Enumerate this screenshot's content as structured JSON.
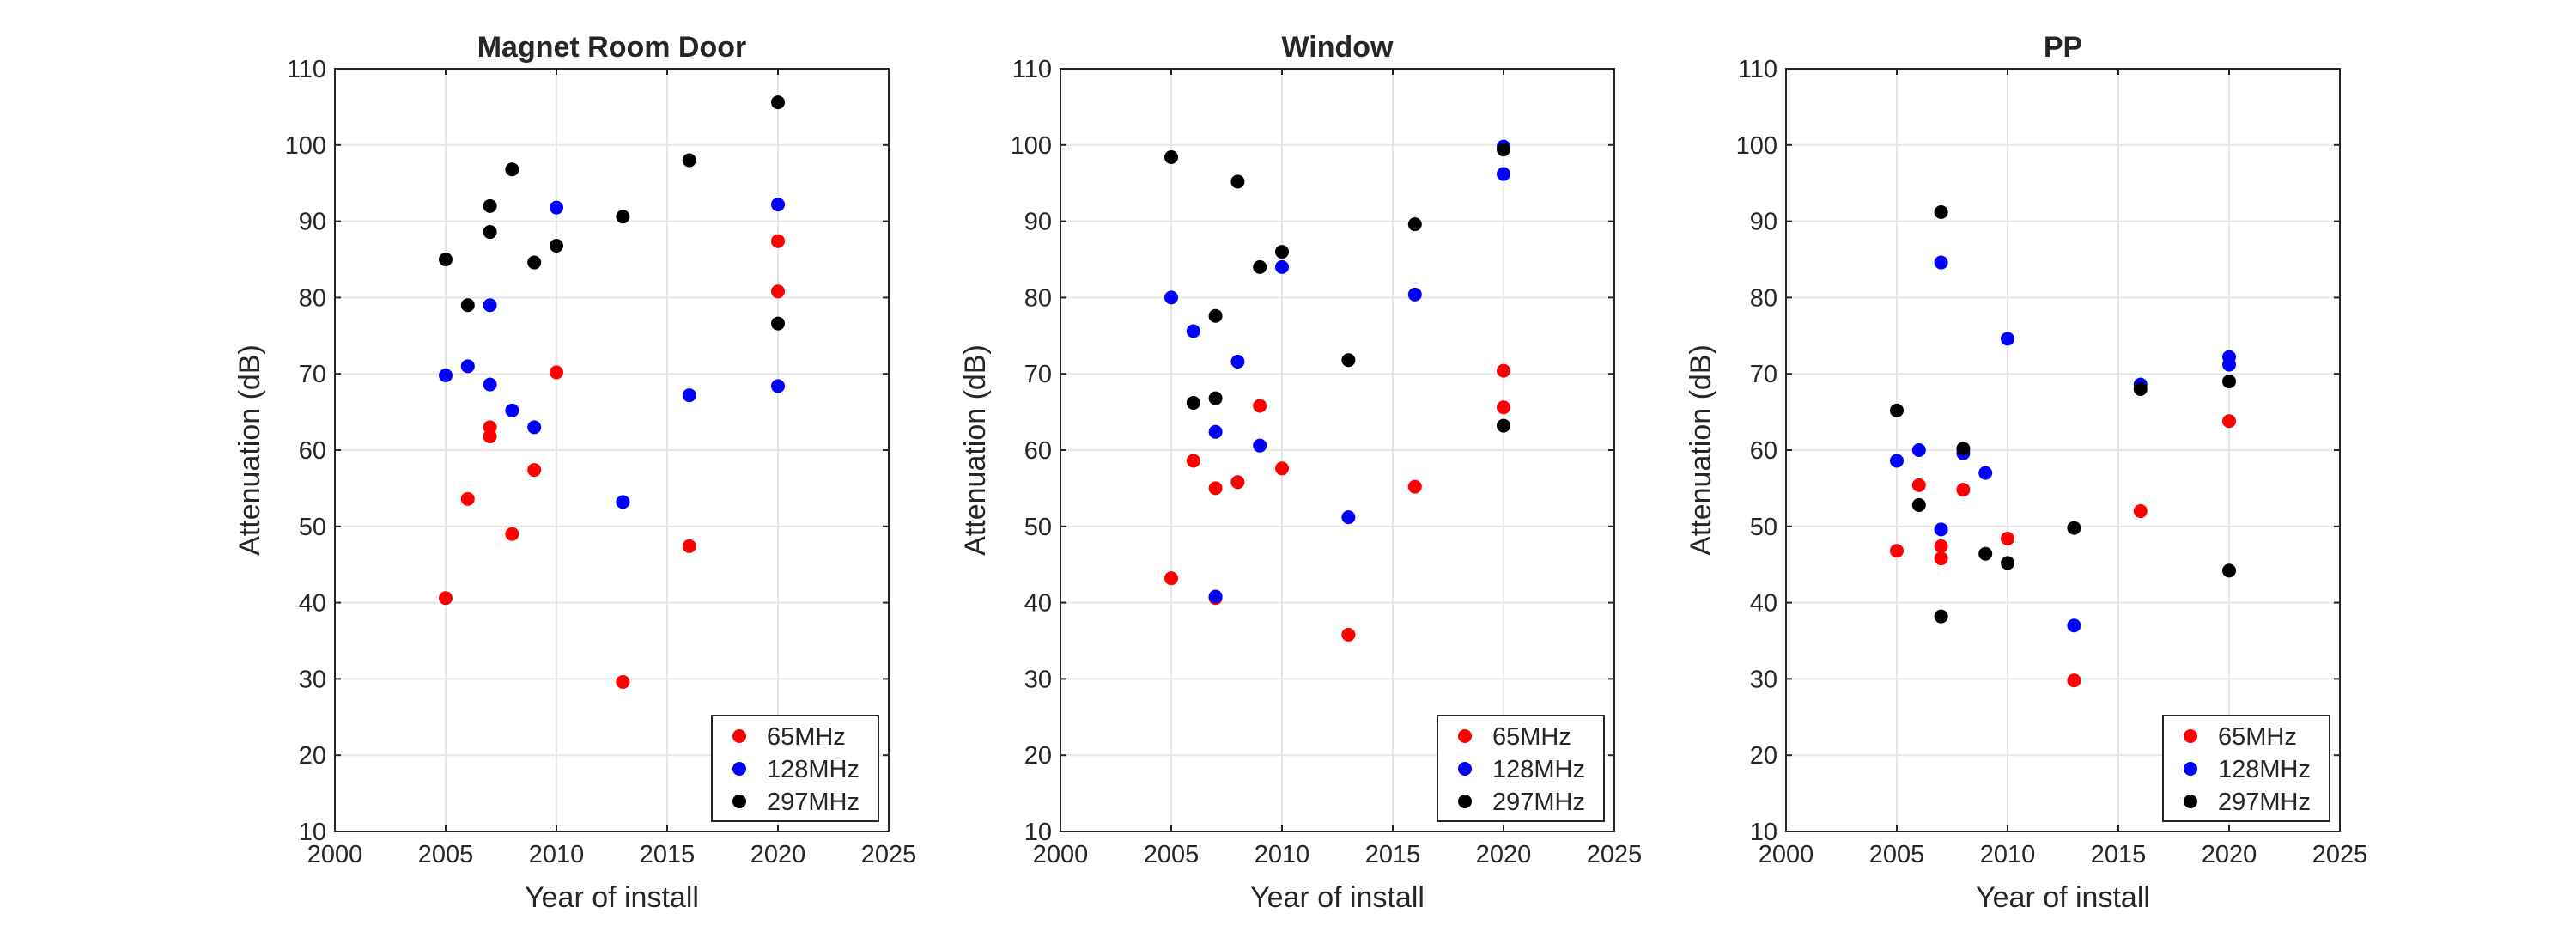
{
  "chart_data": [
    {
      "type": "scatter",
      "title": "Magnet Room Door",
      "xlabel": "Year of install",
      "ylabel": "Attenuation (dB)",
      "xlim": [
        2000,
        2025
      ],
      "ylim": [
        10,
        110
      ],
      "xticks": [
        2000,
        2005,
        2010,
        2015,
        2020,
        2025
      ],
      "yticks": [
        10,
        20,
        30,
        40,
        50,
        60,
        70,
        80,
        90,
        100,
        110
      ],
      "grid": true,
      "legend_position": "bottom-right",
      "series": [
        {
          "name": "65MHz",
          "color": "#ff0000",
          "x": [
            2005,
            2006,
            2007,
            2007,
            2008,
            2009,
            2010,
            2013,
            2016,
            2020,
            2020
          ],
          "y": [
            40.6,
            53.6,
            63.0,
            61.8,
            49.0,
            57.4,
            70.2,
            29.6,
            47.4,
            87.4,
            80.8
          ]
        },
        {
          "name": "128MHz",
          "color": "#0000ff",
          "x": [
            2005,
            2006,
            2007,
            2007,
            2008,
            2009,
            2010,
            2013,
            2016,
            2020,
            2020
          ],
          "y": [
            69.8,
            71.0,
            79.0,
            68.6,
            65.2,
            63.0,
            91.8,
            53.2,
            67.2,
            92.2,
            68.4
          ]
        },
        {
          "name": "297MHz",
          "color": "#000000",
          "x": [
            2005,
            2006,
            2007,
            2007,
            2008,
            2009,
            2010,
            2013,
            2016,
            2020,
            2020
          ],
          "y": [
            85.0,
            79.0,
            92.0,
            88.6,
            96.8,
            84.6,
            86.8,
            90.6,
            98.0,
            105.6,
            76.6
          ]
        }
      ]
    },
    {
      "type": "scatter",
      "title": "Window",
      "xlabel": "Year of install",
      "ylabel": "Attenuation (dB)",
      "xlim": [
        2000,
        2025
      ],
      "ylim": [
        10,
        110
      ],
      "xticks": [
        2000,
        2005,
        2010,
        2015,
        2020,
        2025
      ],
      "yticks": [
        10,
        20,
        30,
        40,
        50,
        60,
        70,
        80,
        90,
        100,
        110
      ],
      "grid": true,
      "legend_position": "bottom-right",
      "series": [
        {
          "name": "65MHz",
          "color": "#ff0000",
          "x": [
            2005,
            2006,
            2007,
            2007,
            2008,
            2009,
            2010,
            2013,
            2016,
            2020,
            2020
          ],
          "y": [
            43.2,
            58.6,
            55.0,
            40.6,
            55.8,
            65.8,
            57.6,
            35.8,
            55.2,
            70.4,
            65.6
          ]
        },
        {
          "name": "128MHz",
          "color": "#0000ff",
          "x": [
            2005,
            2006,
            2007,
            2007,
            2008,
            2009,
            2010,
            2013,
            2016,
            2020,
            2020
          ],
          "y": [
            80.0,
            75.6,
            62.4,
            40.8,
            71.6,
            60.6,
            84.0,
            51.2,
            80.4,
            99.8,
            96.2
          ]
        },
        {
          "name": "297MHz",
          "color": "#000000",
          "x": [
            2005,
            2006,
            2007,
            2007,
            2008,
            2009,
            2010,
            2013,
            2016,
            2020,
            2020
          ],
          "y": [
            98.4,
            66.2,
            77.6,
            66.8,
            95.2,
            84.0,
            86.0,
            71.8,
            89.6,
            99.4,
            63.2
          ]
        }
      ]
    },
    {
      "type": "scatter",
      "title": "PP",
      "xlabel": "Year of install",
      "ylabel": "Attenuation (dB)",
      "xlim": [
        2000,
        2025
      ],
      "ylim": [
        10,
        110
      ],
      "xticks": [
        2000,
        2005,
        2010,
        2015,
        2020,
        2025
      ],
      "yticks": [
        10,
        20,
        30,
        40,
        50,
        60,
        70,
        80,
        90,
        100,
        110
      ],
      "grid": true,
      "legend_position": "bottom-right",
      "series": [
        {
          "name": "65MHz",
          "color": "#ff0000",
          "x": [
            2005,
            2006,
            2007,
            2007,
            2008,
            2010,
            2013,
            2016,
            2020
          ],
          "y": [
            46.8,
            55.4,
            47.4,
            45.8,
            54.8,
            48.4,
            29.8,
            52.0,
            63.8
          ]
        },
        {
          "name": "128MHz",
          "color": "#0000ff",
          "x": [
            2005,
            2006,
            2007,
            2007,
            2008,
            2009,
            2010,
            2013,
            2016,
            2020,
            2020
          ],
          "y": [
            58.6,
            60.0,
            84.6,
            49.6,
            59.6,
            57.0,
            74.6,
            37.0,
            68.6,
            72.2,
            71.2
          ]
        },
        {
          "name": "297MHz",
          "color": "#000000",
          "x": [
            2005,
            2006,
            2007,
            2007,
            2008,
            2009,
            2010,
            2013,
            2016,
            2020,
            2020
          ],
          "y": [
            65.2,
            52.8,
            91.2,
            38.2,
            60.2,
            46.4,
            45.2,
            49.8,
            68.0,
            69.0,
            44.2
          ]
        }
      ]
    }
  ]
}
